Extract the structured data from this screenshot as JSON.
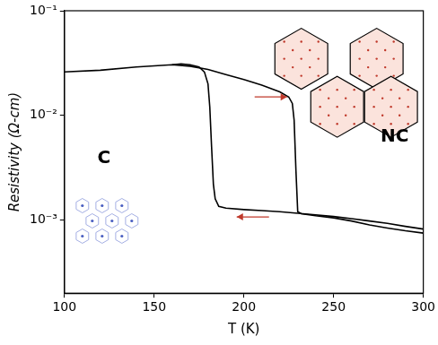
{
  "chart_data": {
    "type": "line",
    "x_label": "T (K)",
    "y_label": "Resistivity (Ω-cm)",
    "log": "y",
    "grid": false,
    "xlim": [
      100,
      300
    ],
    "xticks": [
      100,
      150,
      200,
      250,
      300
    ],
    "ylim": [
      0.0002,
      0.1
    ],
    "yticks": [
      {
        "value": 0.001,
        "label": "10⁻³"
      },
      {
        "value": 0.01,
        "label": "10⁻²"
      },
      {
        "value": 0.1,
        "label": "10⁻¹"
      }
    ],
    "series": [
      {
        "color": "#000000",
        "x": [
          100,
          120,
          140,
          160,
          170,
          180,
          190,
          200,
          210,
          220,
          225,
          227,
          228,
          229,
          230,
          232,
          240,
          250,
          260,
          270,
          280,
          290,
          300
        ],
        "values": [
          0.026,
          0.027,
          0.029,
          0.0305,
          0.0295,
          0.0275,
          0.0245,
          0.022,
          0.0195,
          0.0168,
          0.015,
          0.013,
          0.009,
          0.003,
          0.0012,
          0.00115,
          0.0011,
          0.00105,
          0.00098,
          0.0009,
          0.00084,
          0.00079,
          0.00075
        ]
      },
      {
        "color": "#000000",
        "x": [
          300,
          290,
          280,
          270,
          260,
          250,
          240,
          230,
          220,
          210,
          200,
          190,
          186,
          184,
          183,
          182,
          181,
          180,
          178,
          175,
          170,
          165,
          160
        ],
        "values": [
          0.00082,
          0.00087,
          0.00093,
          0.00098,
          0.00103,
          0.00108,
          0.00112,
          0.00116,
          0.0012,
          0.00123,
          0.00126,
          0.0013,
          0.00135,
          0.0016,
          0.0022,
          0.005,
          0.012,
          0.02,
          0.026,
          0.029,
          0.0305,
          0.031,
          0.0305
        ]
      }
    ],
    "annotations": [
      {
        "text": "C",
        "x": 122,
        "y": 0.0039
      },
      {
        "text": "NC",
        "x": 284,
        "y": 0.0062
      }
    ]
  }
}
